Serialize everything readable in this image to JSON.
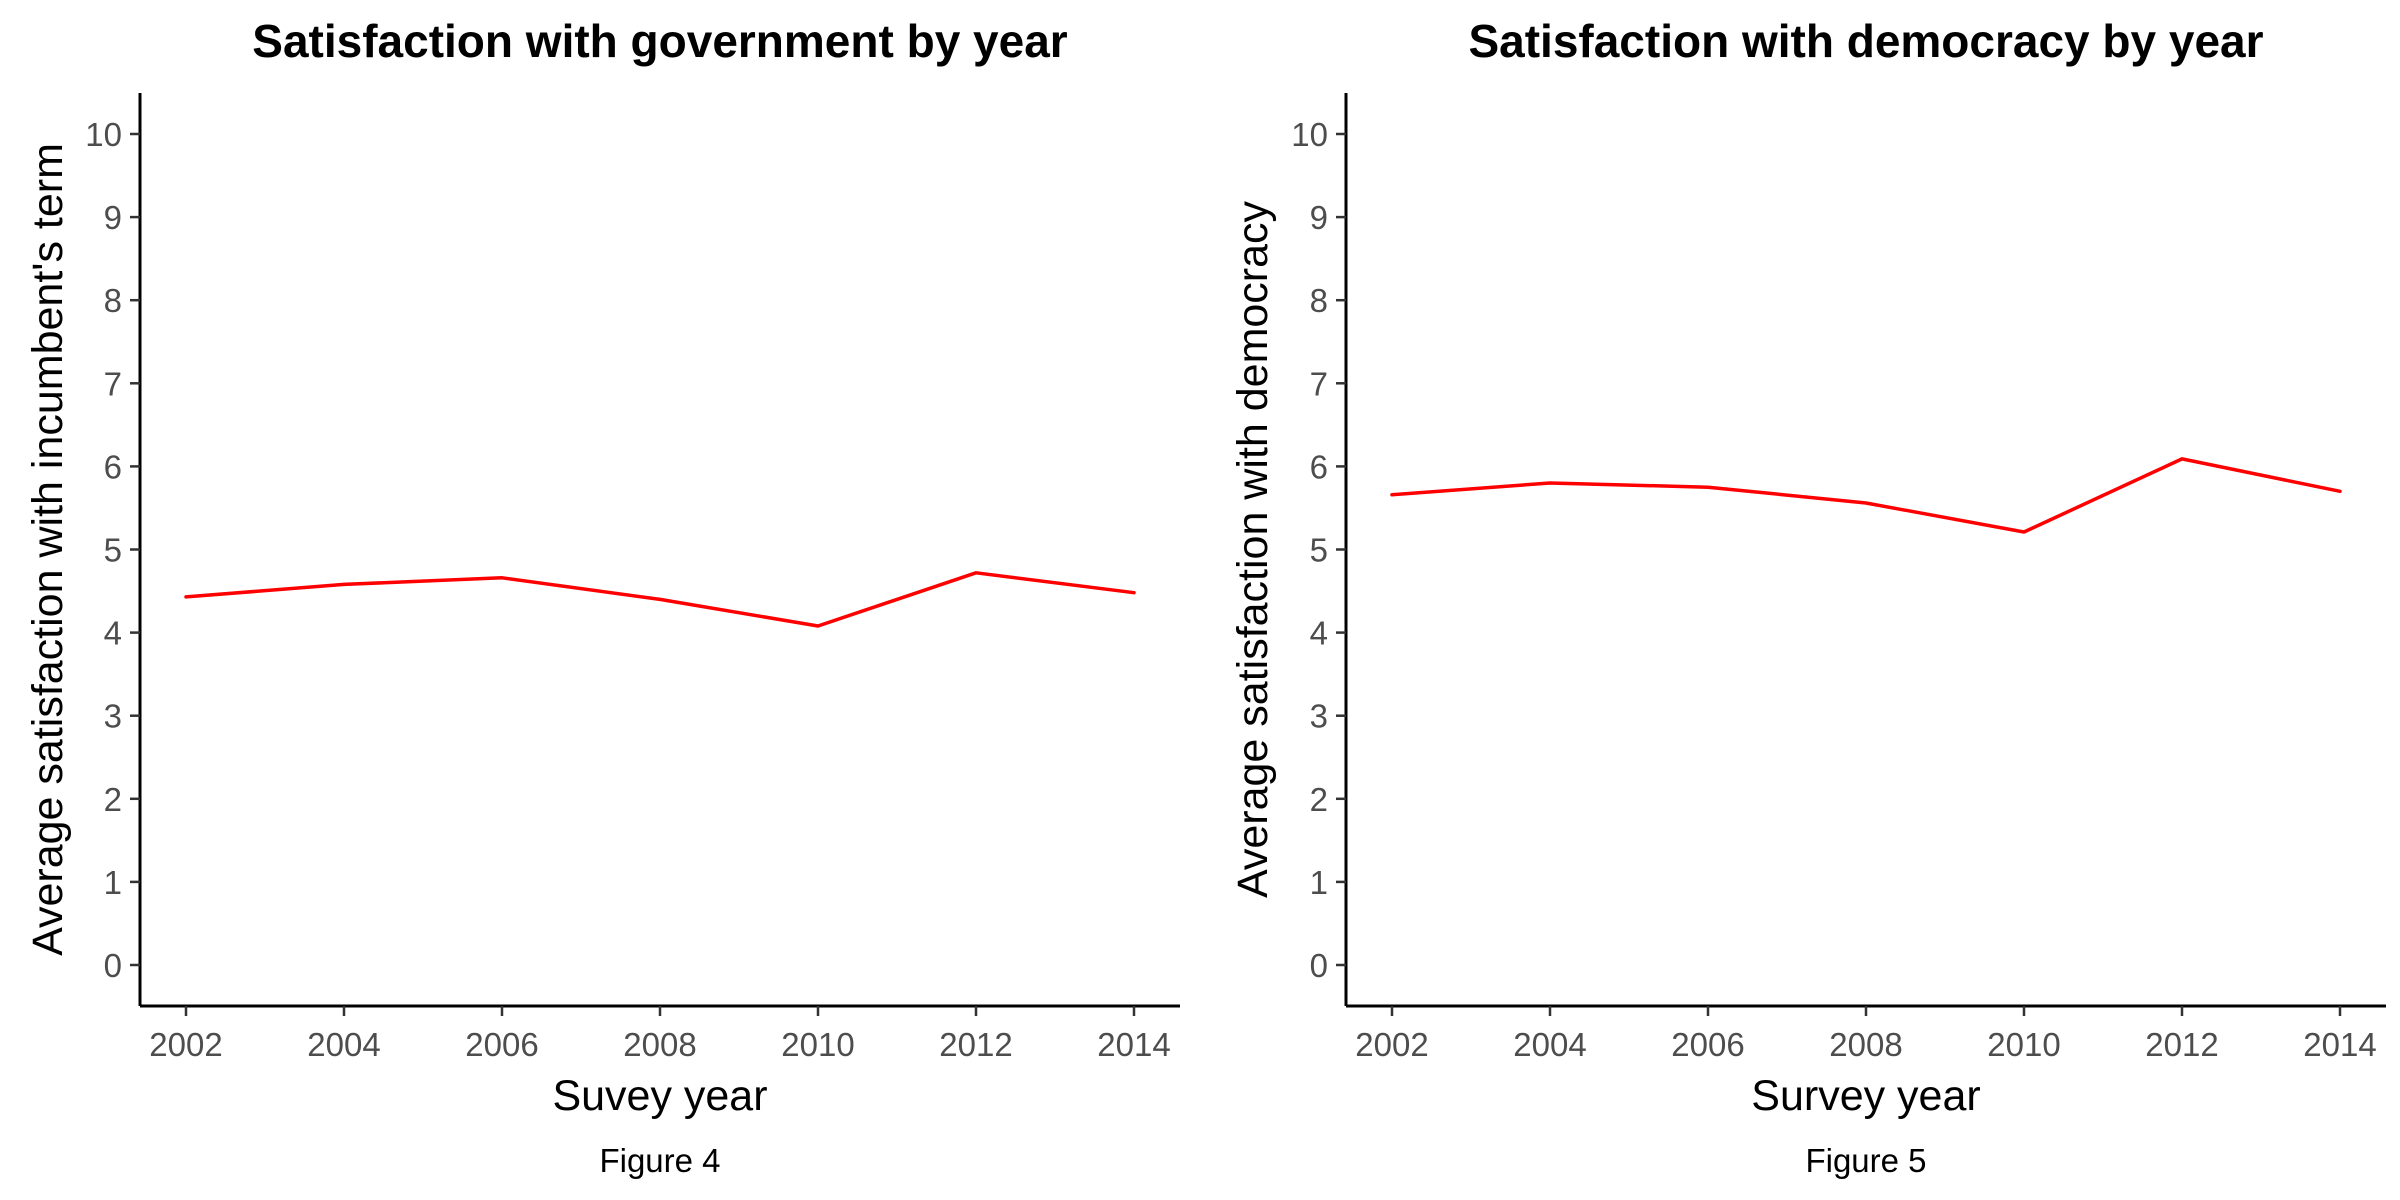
{
  "colors": {
    "series": "#ff0000",
    "axis": "#000000",
    "tick_text": "#4d4d4d"
  },
  "chart_data": [
    {
      "type": "line",
      "title": "Satisfaction with government by year",
      "xlabel": "Suvey year",
      "ylabel": "Average satisfaction with incumbent's term",
      "caption": "Figure 4",
      "xlim": [
        2002,
        2014
      ],
      "ylim": [
        0,
        10
      ],
      "xticks": [
        2002,
        2004,
        2006,
        2008,
        2010,
        2012,
        2014
      ],
      "yticks": [
        0,
        1,
        2,
        3,
        4,
        5,
        6,
        7,
        8,
        9,
        10
      ],
      "grid": false,
      "x": [
        2002,
        2004,
        2006,
        2008,
        2010,
        2012,
        2014
      ],
      "series": [
        {
          "values": [
            4.43,
            4.58,
            4.66,
            4.4,
            4.08,
            4.72,
            4.48
          ]
        }
      ]
    },
    {
      "type": "line",
      "title": "Satisfaction with democracy by year",
      "xlabel": "Survey year",
      "ylabel": "Average satisfaction with democracy",
      "caption": "Figure 5",
      "xlim": [
        2002,
        2014
      ],
      "ylim": [
        0,
        10
      ],
      "xticks": [
        2002,
        2004,
        2006,
        2008,
        2010,
        2012,
        2014
      ],
      "yticks": [
        0,
        1,
        2,
        3,
        4,
        5,
        6,
        7,
        8,
        9,
        10
      ],
      "grid": false,
      "x": [
        2002,
        2004,
        2006,
        2008,
        2010,
        2012,
        2014
      ],
      "series": [
        {
          "values": [
            5.66,
            5.8,
            5.75,
            5.56,
            5.21,
            6.09,
            5.7
          ]
        }
      ]
    }
  ]
}
